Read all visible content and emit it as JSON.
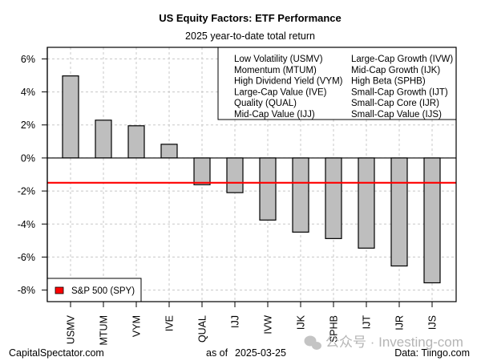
{
  "chart_data": {
    "type": "bar",
    "title": "US Equity Factors: ETF Performance",
    "subtitle": "2025 year-to-date total return",
    "xlabel": "",
    "ylabel": "",
    "categories": [
      "USMV",
      "MTUM",
      "VYM",
      "IVE",
      "QUAL",
      "IJJ",
      "IVW",
      "IJK",
      "SPHB",
      "IJT",
      "IJR",
      "IJS"
    ],
    "values": [
      4.97,
      2.29,
      1.95,
      0.83,
      -1.62,
      -2.1,
      -3.76,
      -4.49,
      -4.88,
      -5.46,
      -6.54,
      -7.56
    ],
    "value_unit": "%",
    "ylim": [
      -8.7,
      6.7
    ],
    "yticks": [
      6,
      4,
      2,
      0,
      -2,
      -4,
      -6,
      -8
    ],
    "ytick_labels": [
      "6%",
      "4%",
      "2%",
      "0%",
      "-2%",
      "-4%",
      "-6%",
      "-8%"
    ],
    "grid": true,
    "bar_color": "#bebebe",
    "benchmark": {
      "name": "S&P 500 (SPY)",
      "value": -1.5,
      "color": "#ff0000"
    },
    "legend_placement": "bottom-left",
    "key_box": {
      "placement": "top-right",
      "left_column": [
        "Low Volatility (USMV)",
        "Momentum (MTUM)",
        "High Dividend Yield (VYM)",
        "Large-Cap Value (IVE)",
        "Quality (QUAL)",
        "Mid-Cap Value (IJJ)"
      ],
      "right_column": [
        "Large-Cap Growth (IVW)",
        "Mid-Cap Growth (IJK)",
        "High Beta (SPHB)",
        "Small-Cap Growth (IJT)",
        "Small-Cap Core (IJR)",
        "Small-Cap Value (IJS)"
      ]
    }
  },
  "footer": {
    "source_left": "CapitalSpectator.com",
    "as_of_label": "as of",
    "as_of_date": "2025-03-25",
    "data_credit": "Data: Tiingo.com"
  },
  "watermark": {
    "text": "公众号 · Investing-com"
  }
}
